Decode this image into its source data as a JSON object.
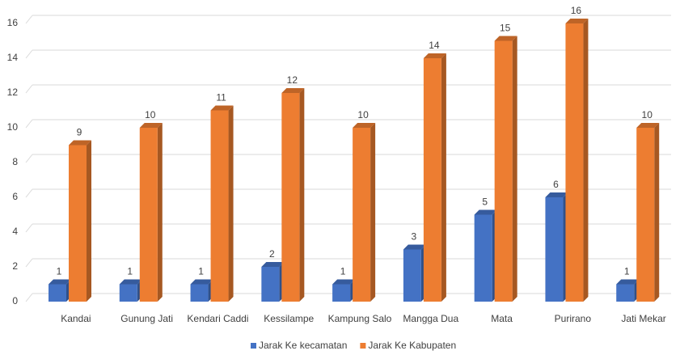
{
  "chart_data": {
    "type": "bar3d",
    "categories": [
      "Kandai",
      "Gunung Jati",
      "Kendari Caddi",
      "Kessilampe",
      "Kampung Salo",
      "Mangga Dua",
      "Mata",
      "Purirano",
      "Jati Mekar"
    ],
    "series": [
      {
        "name": "Jarak Ke kecamatan",
        "color": "#4472c4",
        "values": [
          1,
          1,
          1,
          2,
          1,
          3,
          5,
          6,
          1
        ]
      },
      {
        "name": "Jarak Ke Kabupaten",
        "color": "#ed7d31",
        "values": [
          9,
          10,
          11,
          12,
          10,
          14,
          15,
          16,
          10
        ]
      }
    ],
    "ylim": [
      0,
      16
    ],
    "yticks": [
      0,
      2,
      4,
      6,
      8,
      10,
      12,
      14,
      16
    ],
    "grid": true,
    "legend": "bottom"
  }
}
